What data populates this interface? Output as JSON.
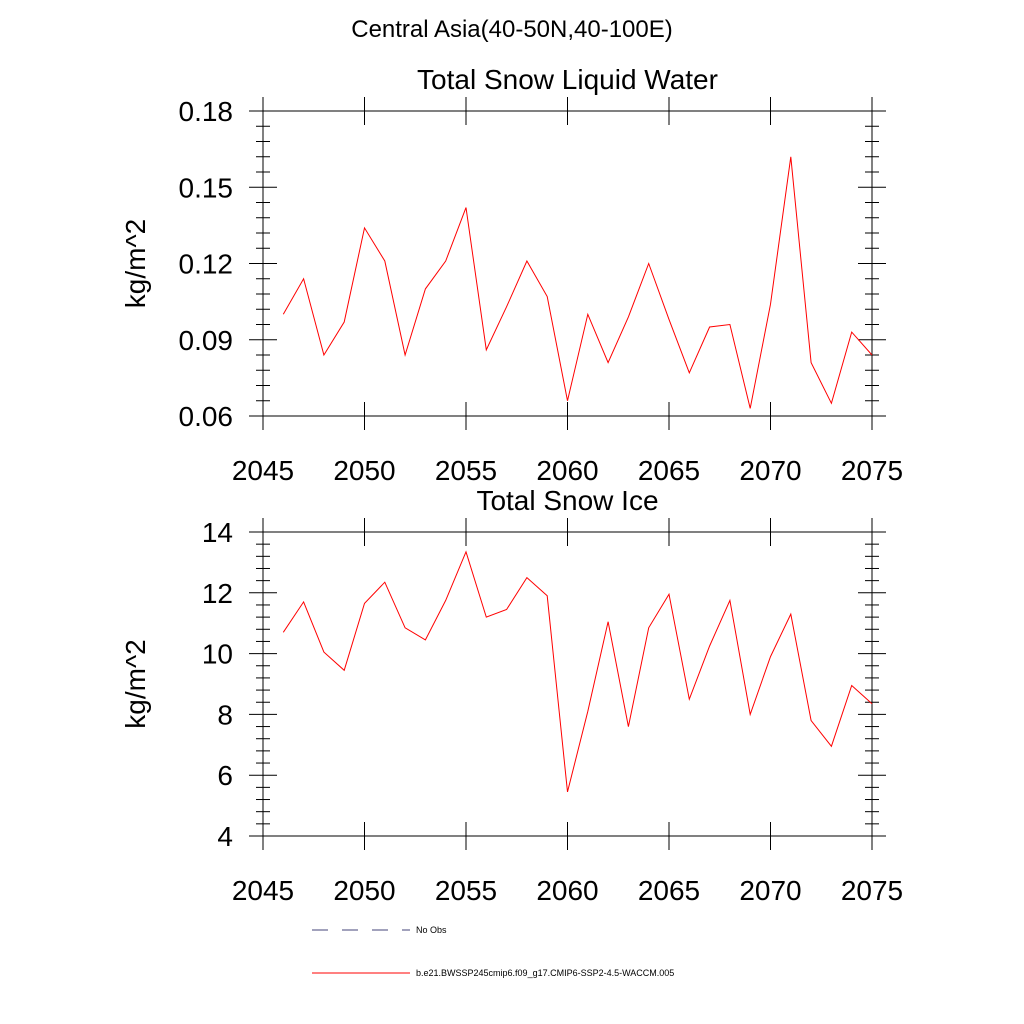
{
  "figure_title": "Central Asia(40-50N,40-100E)",
  "colors": {
    "series": "#ff0000",
    "obs": "#44447a",
    "axis": "#000000"
  },
  "chart_data": [
    {
      "type": "line",
      "title": "Total Snow Liquid Water",
      "ylabel": "kg/m^2",
      "xlabel": "",
      "xlim": [
        2045,
        2075
      ],
      "ylim": [
        0.06,
        0.18
      ],
      "xticks": [
        2045,
        2050,
        2055,
        2060,
        2065,
        2070,
        2075
      ],
      "yticks": [
        "0.06",
        "0.09",
        "0.12",
        "0.15",
        "0.18"
      ],
      "x": [
        2046,
        2047,
        2048,
        2049,
        2050,
        2051,
        2052,
        2053,
        2054,
        2055,
        2056,
        2057,
        2058,
        2059,
        2060,
        2061,
        2062,
        2063,
        2064,
        2065,
        2066,
        2067,
        2068,
        2069,
        2070,
        2071,
        2072,
        2073,
        2074,
        2075
      ],
      "series": [
        {
          "name": "b.e21.BWSSP245cmip6.f09_g17.CMIP6-SSP2-4.5-WACCM.005",
          "values": [
            0.1,
            0.114,
            0.084,
            0.097,
            0.134,
            0.121,
            0.084,
            0.11,
            0.121,
            0.142,
            0.086,
            0.103,
            0.121,
            0.107,
            0.066,
            0.1,
            0.081,
            0.099,
            0.12,
            0.098,
            0.077,
            0.095,
            0.096,
            0.063,
            0.104,
            0.162,
            0.081,
            0.065,
            0.093,
            0.084
          ]
        }
      ]
    },
    {
      "type": "line",
      "title": "Total Snow Ice",
      "ylabel": "kg/m^2",
      "xlabel": "",
      "xlim": [
        2045,
        2075
      ],
      "ylim": [
        4,
        14
      ],
      "xticks": [
        2045,
        2050,
        2055,
        2060,
        2065,
        2070,
        2075
      ],
      "yticks": [
        "4",
        "6",
        "8",
        "10",
        "12",
        "14"
      ],
      "x": [
        2046,
        2047,
        2048,
        2049,
        2050,
        2051,
        2052,
        2053,
        2054,
        2055,
        2056,
        2057,
        2058,
        2059,
        2060,
        2061,
        2062,
        2063,
        2064,
        2065,
        2066,
        2067,
        2068,
        2069,
        2070,
        2071,
        2072,
        2073,
        2074,
        2075
      ],
      "series": [
        {
          "name": "b.e21.BWSSP245cmip6.f09_g17.CMIP6-SSP2-4.5-WACCM.005",
          "values": [
            10.7,
            11.7,
            10.05,
            9.45,
            11.65,
            12.35,
            10.85,
            10.45,
            11.75,
            13.35,
            11.2,
            11.45,
            12.5,
            11.9,
            5.45,
            8.1,
            11.05,
            7.6,
            10.85,
            11.95,
            8.5,
            10.25,
            11.75,
            8.0,
            9.9,
            11.3,
            7.8,
            6.95,
            8.95,
            8.35
          ]
        }
      ]
    }
  ],
  "legend": [
    {
      "label": "No Obs",
      "style": "dashed"
    },
    {
      "label": "b.e21.BWSSP245cmip6.f09_g17.CMIP6-SSP2-4.5-WACCM.005",
      "style": "solid"
    }
  ]
}
